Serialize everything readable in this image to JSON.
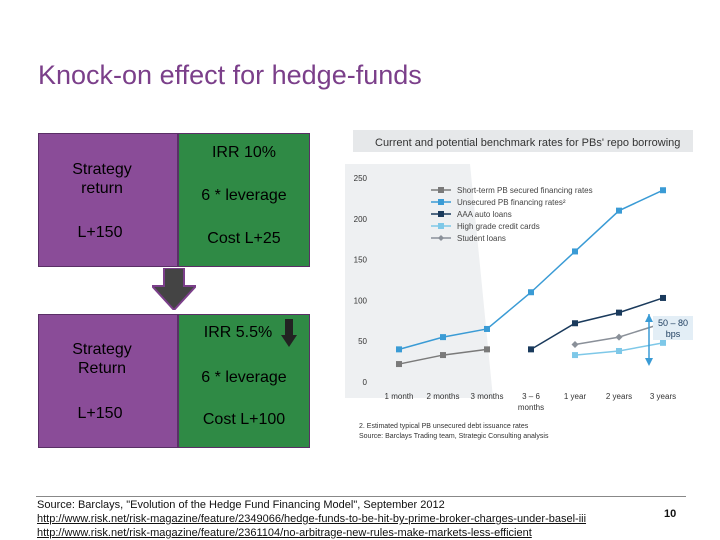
{
  "slide": {
    "title": "Knock-on effect for hedge-funds",
    "page_number": "10"
  },
  "box_top": {
    "left_title": "Strategy\nreturn",
    "left_rate": "L+150",
    "irr": "IRR 10%",
    "leverage": "6 * leverage",
    "cost": "Cost L+25"
  },
  "box_bottom": {
    "left_title": "Strategy\nReturn",
    "left_rate": "L+150",
    "irr": "IRR 5.5%",
    "leverage": "6 * leverage",
    "cost": "Cost L+100"
  },
  "footer": {
    "source": "Source: Barclays, \"Evolution of the Hedge Fund Financing Model\", September 2012",
    "link1": "http://www.risk.net/risk-magazine/feature/2349066/hedge-funds-to-be-hit-by-prime-broker-charges-under-basel-iii",
    "link2": "http://www.risk.net/risk-magazine/feature/2361104/no-arbitrage-new-rules-make-markets-less-efficient"
  },
  "colors": {
    "title": "#7b3f8a",
    "box_purple": "#8a4c98",
    "box_green": "#2f8a45",
    "arrow_fill": "#444444"
  },
  "chart_data": {
    "type": "line",
    "title": "Current and potential benchmark rates for PBs' repo borrowing",
    "xlabel": "months",
    "categories": [
      "1 month",
      "2 months",
      "3 months",
      "3 – 6",
      "1 year",
      "2 years",
      "3 years"
    ],
    "ylim": [
      0,
      250
    ],
    "yticks": [
      0,
      50,
      100,
      150,
      200,
      250
    ],
    "annotation": "50 – 80\nbps",
    "note": "2. Estimated typical PB unsecured debt issuance rates",
    "source": "Source: Barclays Trading team, Strategic Consulting analysis",
    "series": [
      {
        "name": "Short-term PB secured financing rates",
        "color": "#7a7a7a",
        "marker": "square",
        "points": [
          [
            0,
            22
          ],
          [
            1,
            33
          ],
          [
            2,
            40
          ]
        ]
      },
      {
        "name": "Unsecured PB financing rates²",
        "color": "#3a9bd5",
        "marker": "square",
        "points": [
          [
            0,
            40
          ],
          [
            1,
            55
          ],
          [
            2,
            65
          ],
          [
            3,
            110
          ],
          [
            4,
            160
          ],
          [
            5,
            210
          ],
          [
            6,
            235
          ]
        ]
      },
      {
        "name": "AAA auto loans",
        "color": "#1a3a5c",
        "marker": "square",
        "points": [
          [
            3,
            40
          ],
          [
            4,
            72
          ],
          [
            5,
            85
          ],
          [
            6,
            103
          ]
        ]
      },
      {
        "name": "High grade credit cards",
        "color": "#7ec8e8",
        "marker": "square",
        "points": [
          [
            4,
            33
          ],
          [
            5,
            38
          ],
          [
            6,
            48
          ]
        ]
      },
      {
        "name": "Student loans",
        "color": "#8a9099",
        "marker": "diamond",
        "points": [
          [
            4,
            46
          ],
          [
            5,
            55
          ],
          [
            6,
            72
          ]
        ]
      }
    ]
  }
}
